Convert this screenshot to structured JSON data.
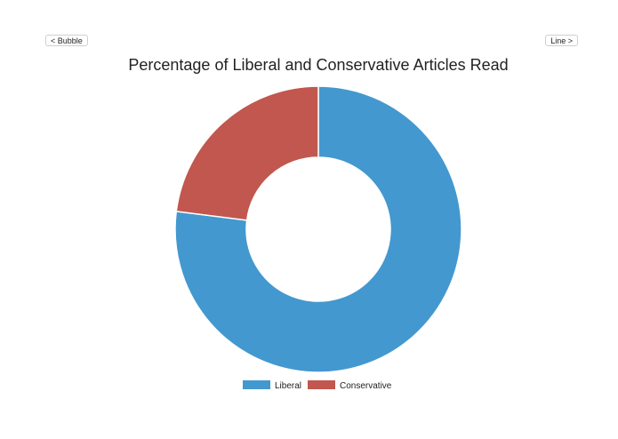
{
  "nav": {
    "prev_label": "< Bubble",
    "next_label": "Line >"
  },
  "chart_data": {
    "type": "pie",
    "variant": "donut",
    "title": "Percentage of Liberal and Conservative Articles Read",
    "categories": [
      "Liberal",
      "Conservative"
    ],
    "values": [
      77,
      23
    ],
    "colors": [
      "#4398cf",
      "#c1574e"
    ],
    "legend_position": "bottom"
  }
}
